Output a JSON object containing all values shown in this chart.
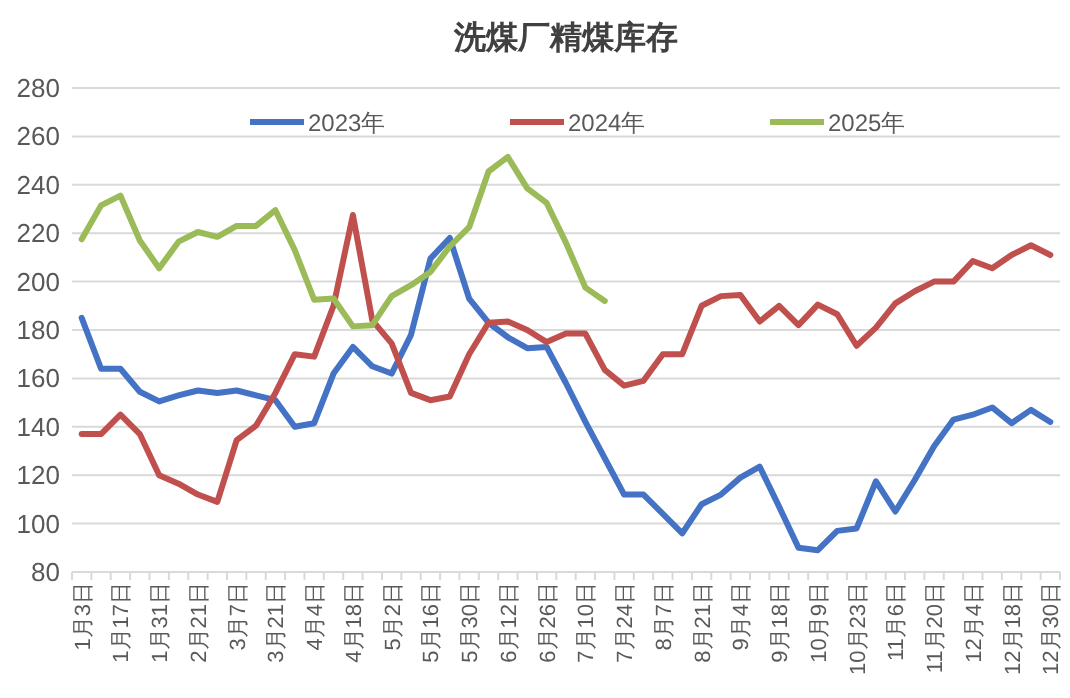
{
  "chart_data": {
    "type": "line",
    "title": "洗煤厂精煤库存",
    "categories": [
      "1月3日",
      null,
      "1月17日",
      null,
      "1月31日",
      null,
      "2月21日",
      null,
      "3月7日",
      null,
      "3月21日",
      null,
      "4月4日",
      null,
      "4月18日",
      null,
      "5月2日",
      null,
      "5月16日",
      null,
      "5月30日",
      null,
      "6月12日",
      null,
      "6月26日",
      null,
      "7月10日",
      null,
      "7月24日",
      null,
      "8月7日",
      null,
      "8月21日",
      null,
      "9月4日",
      null,
      "9月18日",
      null,
      "10月9日",
      null,
      "10月23日",
      null,
      "11月6日",
      null,
      "11月20日",
      null,
      "12月4日",
      null,
      "12月18日",
      null,
      "12月30日"
    ],
    "series": [
      {
        "name": "2023年",
        "color": "#4472c4",
        "values": [
          185,
          164,
          164,
          154.5,
          150.5,
          153,
          155,
          154,
          155,
          153,
          151,
          140,
          141.5,
          162,
          173,
          165,
          162,
          178,
          209.5,
          218,
          193,
          183,
          177,
          172.5,
          173,
          158,
          142,
          127,
          112,
          112,
          104,
          96,
          108,
          112,
          119,
          123.5,
          107,
          90,
          89,
          97,
          98,
          117.5,
          105,
          118,
          132,
          143,
          145,
          148,
          141.5,
          147,
          142
        ]
      },
      {
        "name": "2024年",
        "color": "#c0504d",
        "values": [
          137,
          137,
          145,
          137,
          120,
          116.5,
          112,
          109,
          134.5,
          140.5,
          154,
          170,
          169,
          190,
          227.5,
          184,
          174.5,
          154,
          151,
          152.5,
          170,
          183,
          183.5,
          180,
          175,
          178.5,
          178.5,
          163.5,
          157,
          159,
          170,
          170,
          190,
          194,
          194.5,
          183.5,
          190,
          182,
          190.5,
          186.5,
          173.5,
          181,
          191,
          196,
          200,
          200,
          208.5,
          205.5,
          211,
          215,
          211
        ]
      },
      {
        "name": "2025年",
        "color": "#9bbb59",
        "values": [
          217.5,
          231.5,
          235.5,
          217,
          205.5,
          216.5,
          220.5,
          218.5,
          223,
          223,
          229.5,
          213,
          192.5,
          193,
          181.5,
          182,
          194,
          198.5,
          204,
          214.5,
          222.5,
          245.5,
          251.5,
          238.5,
          232.5,
          216,
          197.5,
          192,
          null,
          null,
          null,
          null,
          null,
          null,
          null,
          null,
          null,
          null,
          null,
          null,
          null,
          null,
          null,
          null,
          null,
          null,
          null,
          null,
          null,
          null,
          null
        ]
      }
    ],
    "ylim": [
      80,
      280
    ],
    "yticks": [
      80,
      100,
      120,
      140,
      160,
      180,
      200,
      220,
      240,
      260,
      280
    ],
    "grid": "y",
    "legend": "top",
    "line_style": "solid",
    "marker": "none"
  }
}
